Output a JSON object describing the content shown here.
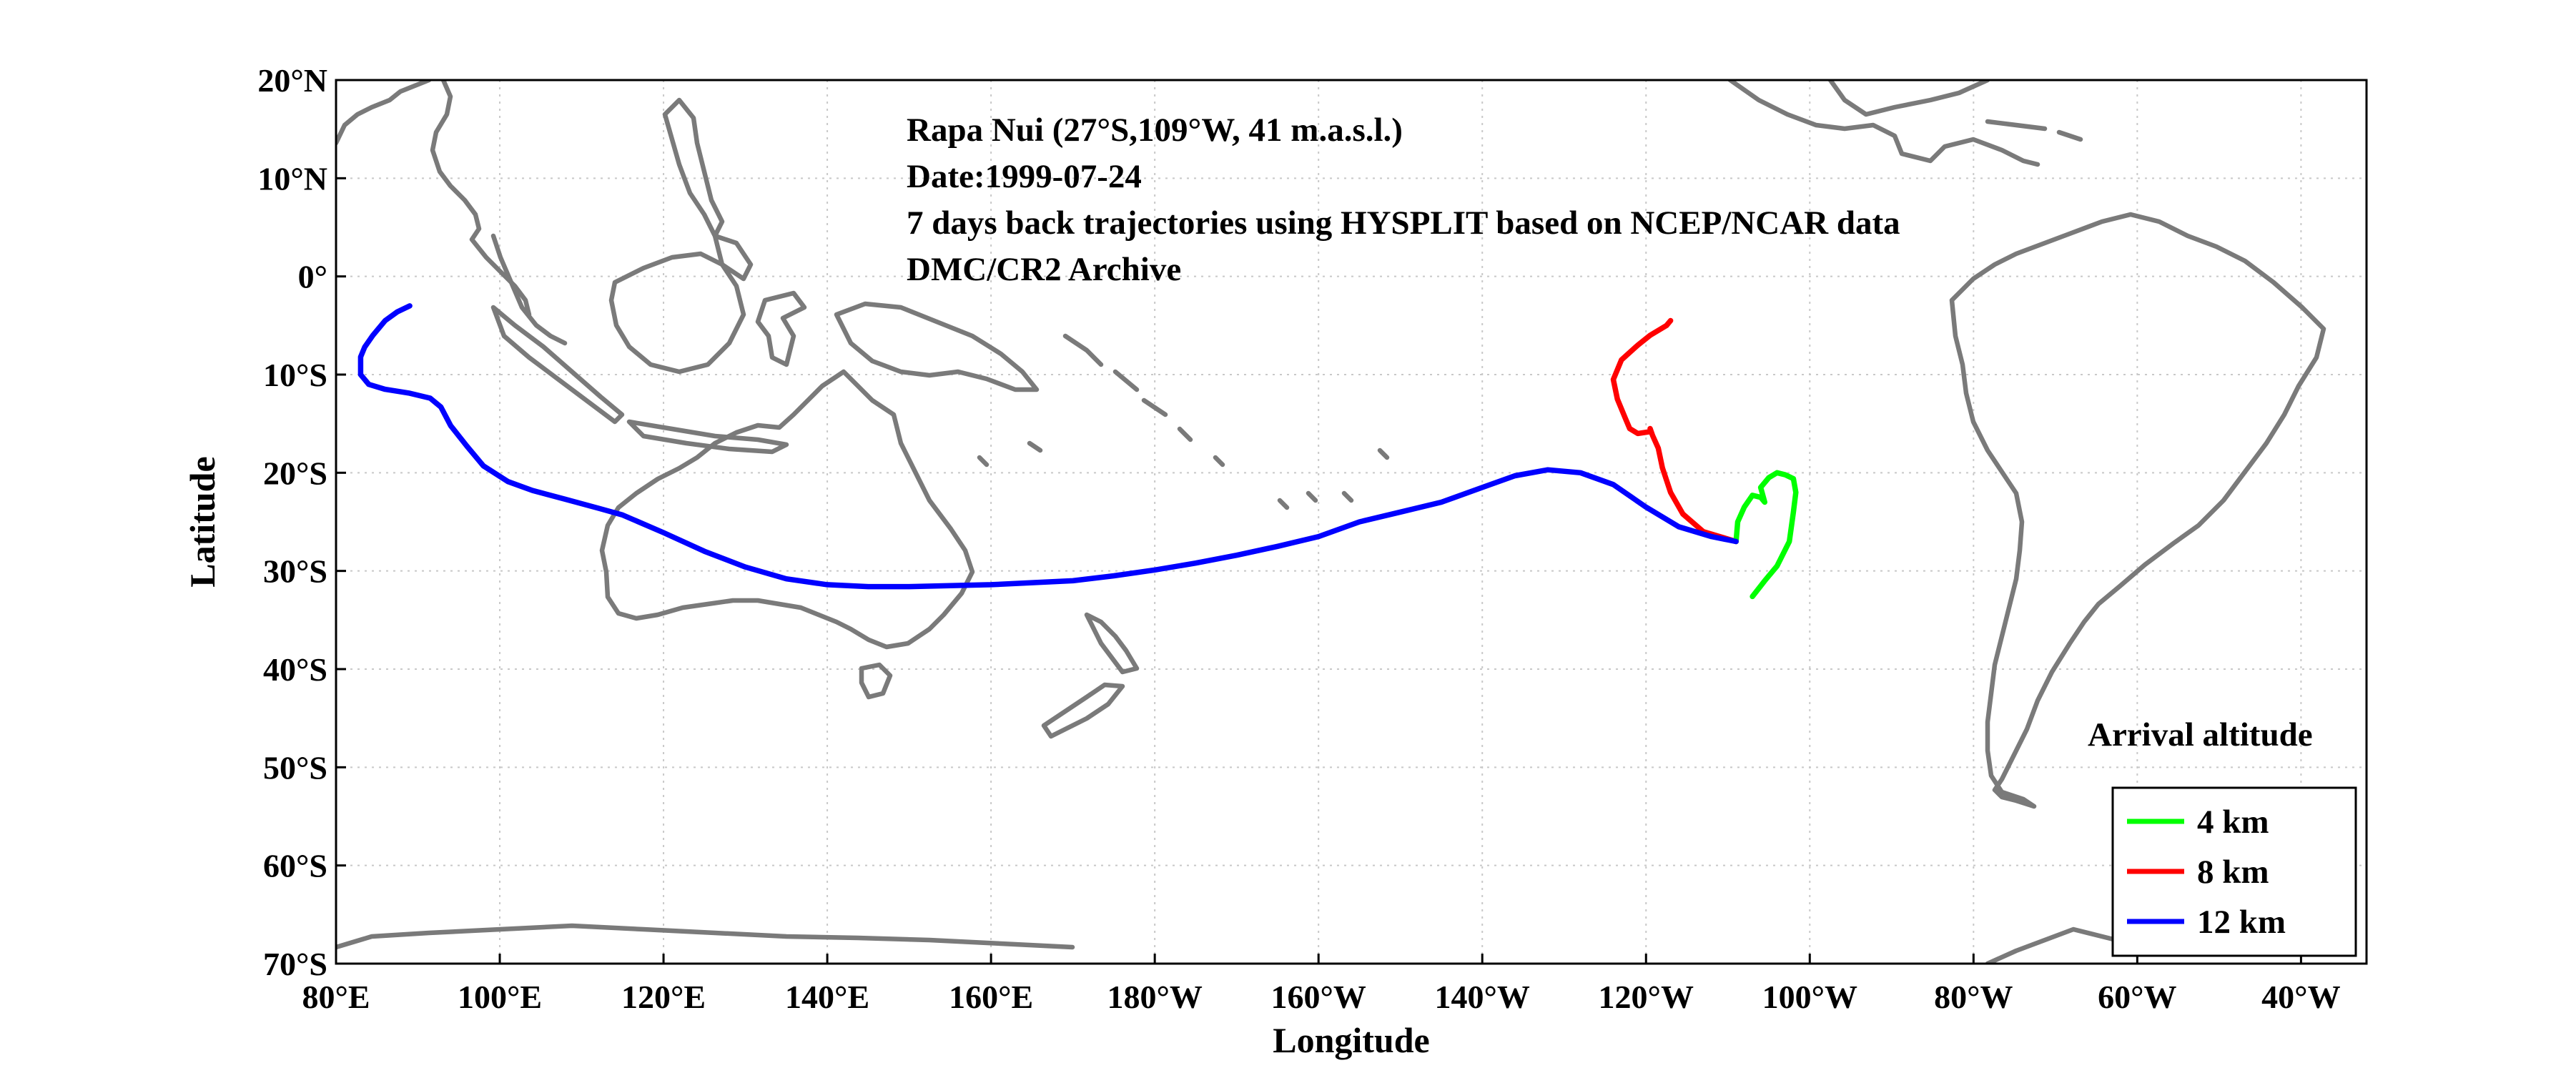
{
  "annotation": {
    "line1": "Rapa Nui (27°S,109°W, 41 m.a.s.l.)",
    "line2": "Date:1999-07-24",
    "line3": "7 days back trajectories using HYSPLIT based on NCEP/NCAR data",
    "line4": "DMC/CR2 Archive"
  },
  "axes": {
    "xlabel": "Longitude",
    "ylabel": "Latitude",
    "x_ticks": [
      {
        "value": 80,
        "label": "80°E"
      },
      {
        "value": 100,
        "label": "100°E"
      },
      {
        "value": 120,
        "label": "120°E"
      },
      {
        "value": 140,
        "label": "140°E"
      },
      {
        "value": 160,
        "label": "160°E"
      },
      {
        "value": 180,
        "label": "180°W"
      },
      {
        "value": 200,
        "label": "160°W"
      },
      {
        "value": 220,
        "label": "140°W"
      },
      {
        "value": 240,
        "label": "120°W"
      },
      {
        "value": 260,
        "label": "100°W"
      },
      {
        "value": 280,
        "label": "80°W"
      },
      {
        "value": 300,
        "label": "60°W"
      },
      {
        "value": 320,
        "label": "40°W"
      }
    ],
    "y_ticks": [
      {
        "value": 20,
        "label": "20°N"
      },
      {
        "value": 10,
        "label": "10°N"
      },
      {
        "value": 0,
        "label": "0°"
      },
      {
        "value": -10,
        "label": "10°S"
      },
      {
        "value": -20,
        "label": "20°S"
      },
      {
        "value": -30,
        "label": "30°S"
      },
      {
        "value": -40,
        "label": "40°S"
      },
      {
        "value": -50,
        "label": "50°S"
      },
      {
        "value": -60,
        "label": "60°S"
      },
      {
        "value": -70,
        "label": "70°S"
      }
    ],
    "xlim": [
      80,
      328
    ],
    "ylim": [
      -70,
      20
    ],
    "grid": true
  },
  "legend": {
    "title": "Arrival altitude",
    "placement": "bottom-right",
    "items": [
      {
        "label": "4 km",
        "color": "#00ff00"
      },
      {
        "label": "8 km",
        "color": "#ff0000"
      },
      {
        "label": "12 km",
        "color": "#0000ff"
      }
    ]
  },
  "colors": {
    "land": "#7a7a7a",
    "grid": "#c8c8c8",
    "axes": "#000000"
  },
  "chart_data": {
    "type": "line",
    "xlim": [
      80,
      328
    ],
    "ylim": [
      -70,
      20
    ],
    "grid": true,
    "legend_placement": "bottom-right",
    "series": [
      {
        "name": "4 km",
        "color": "#00ff00",
        "points": [
          [
            251,
            -27
          ],
          [
            251.2,
            -25
          ],
          [
            252,
            -23.5
          ],
          [
            253,
            -22.3
          ],
          [
            254,
            -22.5
          ],
          [
            254.5,
            -23
          ],
          [
            254,
            -21.5
          ],
          [
            255,
            -20.5
          ],
          [
            256,
            -20
          ],
          [
            257,
            -20.2
          ],
          [
            258,
            -20.6
          ],
          [
            258.3,
            -22
          ],
          [
            258,
            -24
          ],
          [
            257.5,
            -27
          ],
          [
            256,
            -29.5
          ],
          [
            254.5,
            -31
          ],
          [
            253,
            -32.6
          ]
        ]
      },
      {
        "name": "8 km",
        "color": "#ff0000",
        "points": [
          [
            251,
            -27
          ],
          [
            249,
            -26.5
          ],
          [
            247,
            -26
          ],
          [
            244.5,
            -24.2
          ],
          [
            243,
            -22
          ],
          [
            242,
            -19.5
          ],
          [
            241.5,
            -17.5
          ],
          [
            240.8,
            -16.2
          ],
          [
            240.5,
            -15.5
          ],
          [
            240.6,
            -15.8
          ],
          [
            239,
            -16
          ],
          [
            238,
            -15.5
          ],
          [
            237.5,
            -14.5
          ],
          [
            236.5,
            -12.5
          ],
          [
            236,
            -10.5
          ],
          [
            237,
            -8.5
          ],
          [
            239,
            -7
          ],
          [
            240.5,
            -6
          ],
          [
            242.5,
            -5
          ],
          [
            243,
            -4.5
          ]
        ]
      },
      {
        "name": "12 km",
        "color": "#0000ff",
        "points": [
          [
            251,
            -27
          ],
          [
            248,
            -26.5
          ],
          [
            244,
            -25.5
          ],
          [
            240,
            -23.5
          ],
          [
            236,
            -21.2
          ],
          [
            232,
            -20
          ],
          [
            228,
            -19.7
          ],
          [
            224,
            -20.3
          ],
          [
            220,
            -21.5
          ],
          [
            215,
            -23
          ],
          [
            210,
            -24
          ],
          [
            205,
            -25
          ],
          [
            200,
            -26.5
          ],
          [
            195,
            -27.5
          ],
          [
            190,
            -28.4
          ],
          [
            185,
            -29.2
          ],
          [
            180,
            -29.9
          ],
          [
            175,
            -30.5
          ],
          [
            170,
            -31
          ],
          [
            165,
            -31.2
          ],
          [
            160,
            -31.4
          ],
          [
            155,
            -31.5
          ],
          [
            150,
            -31.6
          ],
          [
            145,
            -31.6
          ],
          [
            140,
            -31.4
          ],
          [
            135,
            -30.8
          ],
          [
            130,
            -29.6
          ],
          [
            125,
            -28
          ],
          [
            120,
            -26.1
          ],
          [
            115,
            -24.3
          ],
          [
            112,
            -23.6
          ],
          [
            108,
            -22.7
          ],
          [
            104,
            -21.8
          ],
          [
            101,
            -20.9
          ],
          [
            98,
            -19.3
          ],
          [
            96,
            -17.3
          ],
          [
            94,
            -15.2
          ],
          [
            92.8,
            -13.3
          ],
          [
            91.5,
            -12.4
          ],
          [
            89,
            -11.9
          ],
          [
            86,
            -11.5
          ],
          [
            84,
            -11
          ],
          [
            83,
            -10
          ],
          [
            83,
            -8.2
          ],
          [
            83.5,
            -7.2
          ],
          [
            84.5,
            -6
          ],
          [
            86,
            -4.5
          ],
          [
            87.5,
            -3.6
          ],
          [
            89,
            -3
          ]
        ]
      }
    ]
  }
}
